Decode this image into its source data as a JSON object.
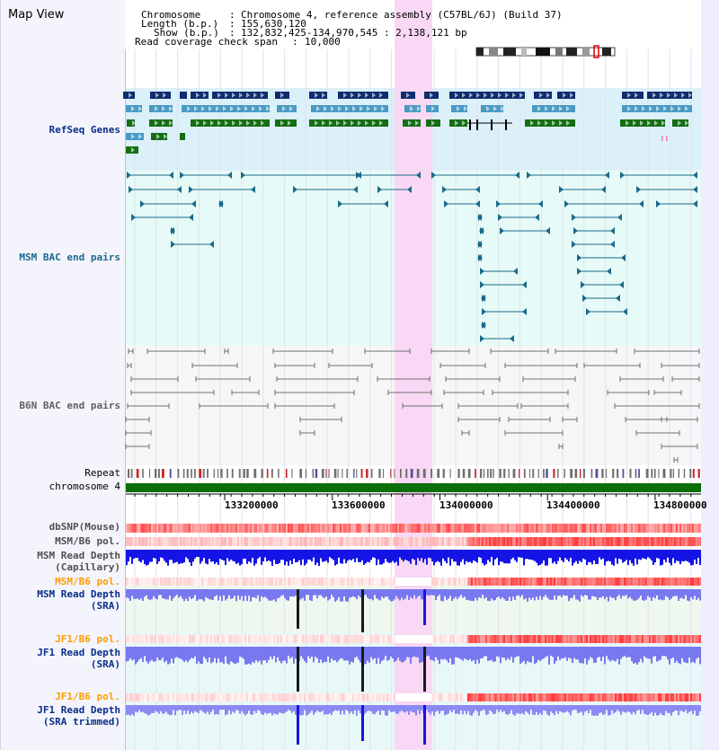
{
  "title": "Map View",
  "header": {
    "chromosome_label": "Chromosome",
    "chromosome_value": "Chromosome 4, reference assembly (C57BL/6J) (Build 37)",
    "length_label": "Length (b.p.)",
    "length_value": "155,630,120",
    "show_label": "Show (b.p.)",
    "show_value": "132,832,425-134,970,545 : 2,138,121 bp",
    "span_label": "Read coverage check span",
    "span_value": "10,000"
  },
  "tracks": {
    "refseq": "RefSeq Genes",
    "msm_bac": "MSM BAC end pairs",
    "b6n_bac": "B6N BAC end pairs",
    "repeat": "Repeat",
    "chromosome": "chromosome 4",
    "dbsnp": "dbSNP(Mouse)",
    "msm_pol_1": "MSM/B6 pol.",
    "msm_depth_cap_1": "MSM Read Depth",
    "msm_depth_cap_2": "(Capillary)",
    "msm_pol_2": "MSM/B6 pol.",
    "msm_depth_sra_1": "MSM Read Depth",
    "msm_depth_sra_2": "(SRA)",
    "jf1_pol_1": "JF1/B6 pol.",
    "jf1_depth_sra_1": "JF1 Read Depth",
    "jf1_depth_sra_2": "(SRA)",
    "jf1_pol_2": "JF1/B6 pol.",
    "jf1_depth_trim_1": "JF1 Read Depth",
    "jf1_depth_trim_2": "(SRA trimmed)"
  },
  "axis": {
    "ticks": [
      "133200000",
      "133600000",
      "134000000",
      "134400000",
      "134800000"
    ],
    "tick_positions_bp": [
      133200000,
      133600000,
      134000000,
      134400000,
      134800000
    ]
  },
  "colors": {
    "refseq_bg": "#dcf0fa",
    "bac_bg": "#e6faf8",
    "highlight": "#f8d8f4",
    "gene_dark": "#0d2d6e",
    "gene_mid": "#4a9ac4",
    "gene_green": "#146e14",
    "msm_bac": "#1a6a8a",
    "b6n_bac": "#707070",
    "chromosome_bar": "#0a6e0a",
    "polymorphism": "#e83030",
    "depth_capillary": "#1414e6",
    "depth_sra": "#7878f0",
    "label_blue": "#0a2e8a",
    "label_teal": "#1a6a8a",
    "label_gray": "#606060",
    "label_orange": "#ff9c00"
  }
}
